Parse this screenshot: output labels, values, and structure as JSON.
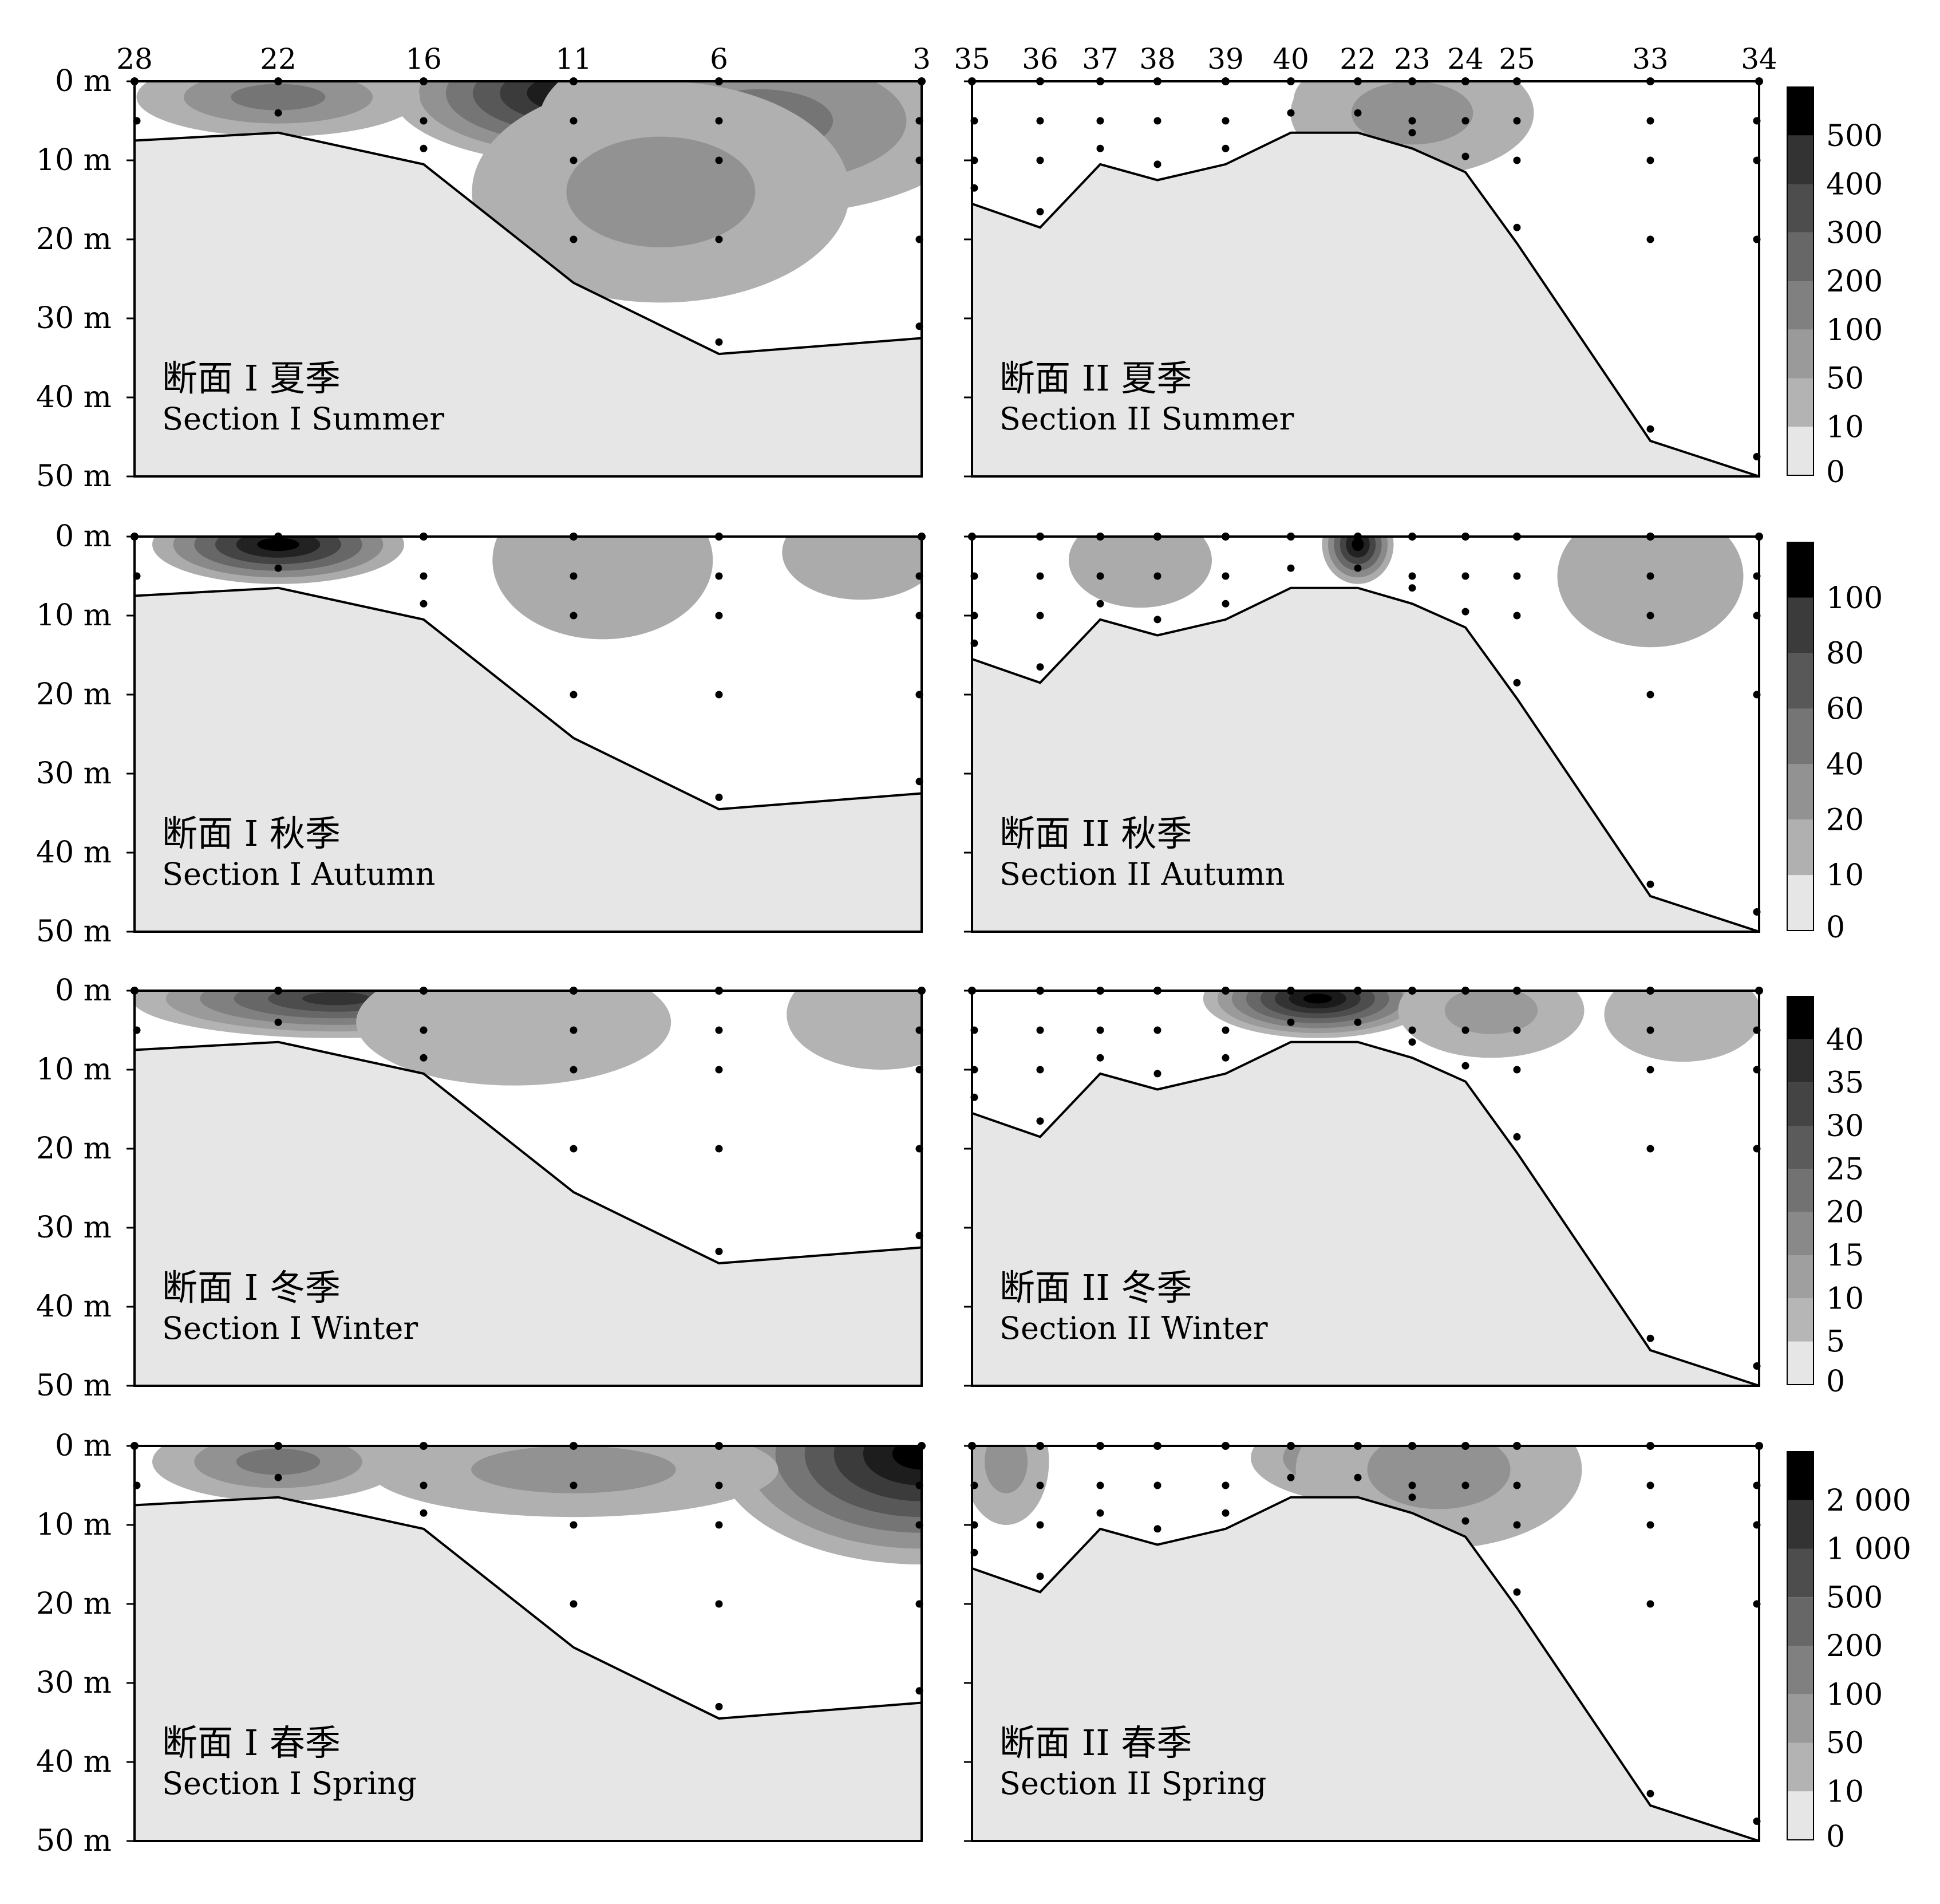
{
  "figure": {
    "depth_ticks": [
      "0 m",
      "10 m",
      "20 m",
      "30 m",
      "40 m",
      "50 m"
    ],
    "depth_values": [
      0,
      10,
      20,
      30,
      40,
      50
    ],
    "seafloor_color": "#e6e6e6",
    "water_zero_color": "#ffffff",
    "outline_color": "#000000",
    "section1_stations": [
      "28",
      "22",
      "16",
      "11",
      "6",
      "3"
    ],
    "section2_stations": [
      "35",
      "36",
      "37",
      "38",
      "39",
      "40",
      "22",
      "23",
      "24",
      "25",
      "33",
      "34"
    ]
  },
  "chart_data": [
    {
      "type": "heatmap",
      "panel": "section1-summer",
      "title_cn": "断面 I  夏季",
      "title_en": "Section I Summer",
      "ylim": [
        0,
        50
      ],
      "show_station_labels": true,
      "x_stations": [
        "28",
        "22",
        "16",
        "11",
        "6",
        "3"
      ],
      "bottom_depth": [
        7.5,
        6.5,
        10.5,
        25.5,
        34.5,
        32.5
      ],
      "colorbar_levels": [
        "0",
        "10",
        "50",
        "100",
        "200",
        "300",
        "400",
        "500"
      ],
      "hotspots": [
        {
          "station_index": 3.05,
          "depth": 1.5,
          "level": 7,
          "spread": 1.2,
          "depth_spread": 9
        },
        {
          "station_index": 1.0,
          "depth": 2.0,
          "level": 3,
          "spread": 0.9,
          "depth_spread": 5
        },
        {
          "station_index": 4.2,
          "depth": 5.0,
          "level": 3,
          "spread": 1.4,
          "depth_spread": 12
        },
        {
          "station_index": 3.6,
          "depth": 14.0,
          "level": 2,
          "spread": 1.2,
          "depth_spread": 14
        }
      ]
    },
    {
      "type": "heatmap",
      "panel": "section2-summer",
      "title_cn": "断面 II  夏季",
      "title_en": "Section II Summer",
      "ylim": [
        0,
        50
      ],
      "show_station_labels": true,
      "x_stations": [
        "35",
        "36",
        "37",
        "38",
        "39",
        "40",
        "22",
        "23",
        "24",
        "25",
        "33",
        "34"
      ],
      "bottom_depth": [
        15.5,
        18.5,
        10.5,
        12.5,
        10.5,
        6.5,
        6.5,
        8.5,
        11.5,
        20.5,
        45.5,
        50.5
      ],
      "colorbar_levels": [
        "0",
        "10",
        "50",
        "100",
        "200",
        "300",
        "400",
        "500"
      ],
      "hotspots": [
        {
          "station_index": 6.0,
          "depth": 2.5,
          "level": 4,
          "spread": 0.9,
          "depth_spread": 5
        },
        {
          "station_index": 7.0,
          "depth": 4.0,
          "level": 2,
          "spread": 1.7,
          "depth_spread": 8
        }
      ]
    },
    {
      "type": "heatmap",
      "panel": "section1-autumn",
      "title_cn": "断面 I  秋季",
      "title_en": "Section I Autumn",
      "ylim": [
        0,
        50
      ],
      "show_station_labels": false,
      "x_stations": [
        "28",
        "22",
        "16",
        "11",
        "6",
        "3"
      ],
      "bottom_depth": [
        7.5,
        6.5,
        10.5,
        25.5,
        34.5,
        32.5
      ],
      "colorbar_levels": [
        "0",
        "10",
        "20",
        "40",
        "60",
        "80",
        "100"
      ],
      "hotspots": [
        {
          "station_index": 1.0,
          "depth": 1.0,
          "level": 6,
          "spread": 0.8,
          "depth_spread": 5
        },
        {
          "station_index": 3.2,
          "depth": 3.0,
          "level": 1,
          "spread": 0.7,
          "depth_spread": 10
        },
        {
          "station_index": 4.7,
          "depth": 2.0,
          "level": 1,
          "spread": 0.5,
          "depth_spread": 6
        }
      ]
    },
    {
      "type": "heatmap",
      "panel": "section2-autumn",
      "title_cn": "断面 II  秋季",
      "title_en": "Section II Autumn",
      "ylim": [
        0,
        50
      ],
      "show_station_labels": false,
      "x_stations": [
        "35",
        "36",
        "37",
        "38",
        "39",
        "40",
        "22",
        "23",
        "24",
        "25",
        "33",
        "34"
      ],
      "bottom_depth": [
        15.5,
        18.5,
        10.5,
        12.5,
        10.5,
        6.5,
        6.5,
        8.5,
        11.5,
        20.5,
        45.5,
        50.5
      ],
      "colorbar_levels": [
        "0",
        "10",
        "20",
        "40",
        "60",
        "80",
        "100"
      ],
      "hotspots": [
        {
          "station_index": 6.0,
          "depth": 1.0,
          "level": 6,
          "spread": 0.5,
          "depth_spread": 5
        },
        {
          "station_index": 10.0,
          "depth": 5.0,
          "level": 1,
          "spread": 1.3,
          "depth_spread": 9
        },
        {
          "station_index": 2.7,
          "depth": 3.0,
          "level": 1,
          "spread": 1.0,
          "depth_spread": 6
        }
      ]
    },
    {
      "type": "heatmap",
      "panel": "section1-winter",
      "title_cn": "断面 I  冬季",
      "title_en": "Section I Winter",
      "ylim": [
        0,
        50
      ],
      "show_station_labels": false,
      "x_stations": [
        "28",
        "22",
        "16",
        "11",
        "6",
        "3"
      ],
      "bottom_depth": [
        7.5,
        6.5,
        10.5,
        25.5,
        34.5,
        32.5
      ],
      "colorbar_levels": [
        "0",
        "5",
        "10",
        "15",
        "20",
        "25",
        "30",
        "35",
        "40"
      ],
      "hotspots": [
        {
          "station_index": 1.4,
          "depth": 1.0,
          "level": 6,
          "spread": 1.3,
          "depth_spread": 5
        },
        {
          "station_index": 2.6,
          "depth": 4.0,
          "level": 1,
          "spread": 1.0,
          "depth_spread": 8
        },
        {
          "station_index": 4.8,
          "depth": 3.0,
          "level": 1,
          "spread": 0.6,
          "depth_spread": 7
        }
      ]
    },
    {
      "type": "heatmap",
      "panel": "section2-winter",
      "title_cn": "断面 II  冬季",
      "title_en": "Section II Winter",
      "ylim": [
        0,
        50
      ],
      "show_station_labels": false,
      "x_stations": [
        "35",
        "36",
        "37",
        "38",
        "39",
        "40",
        "22",
        "23",
        "24",
        "25",
        "33",
        "34"
      ],
      "bottom_depth": [
        15.5,
        18.5,
        10.5,
        12.5,
        10.5,
        6.5,
        6.5,
        8.5,
        11.5,
        20.5,
        45.5,
        50.5
      ],
      "colorbar_levels": [
        "0",
        "5",
        "10",
        "15",
        "20",
        "25",
        "30",
        "35",
        "40"
      ],
      "hotspots": [
        {
          "station_index": 5.4,
          "depth": 1.0,
          "level": 8,
          "spread": 1.6,
          "depth_spread": 5
        },
        {
          "station_index": 8.5,
          "depth": 2.5,
          "level": 2,
          "spread": 1.3,
          "depth_spread": 6
        },
        {
          "station_index": 10.3,
          "depth": 3.0,
          "level": 1,
          "spread": 1.1,
          "depth_spread": 6
        }
      ]
    },
    {
      "type": "heatmap",
      "panel": "section1-spring",
      "title_cn": "断面 I  春季",
      "title_en": "Section I Spring",
      "ylim": [
        0,
        50
      ],
      "show_station_labels": false,
      "x_stations": [
        "28",
        "22",
        "16",
        "11",
        "6",
        "3"
      ],
      "bottom_depth": [
        7.5,
        6.5,
        10.5,
        25.5,
        34.5,
        32.5
      ],
      "colorbar_levels": [
        "0",
        "10",
        "50",
        "100",
        "200",
        "500",
        "1 000",
        "2 000"
      ],
      "hotspots": [
        {
          "station_index": 5.0,
          "depth": 1.0,
          "level": 7,
          "spread": 1.3,
          "depth_spread": 14
        },
        {
          "station_index": 1.0,
          "depth": 2.0,
          "level": 3,
          "spread": 0.8,
          "depth_spread": 5
        },
        {
          "station_index": 3.0,
          "depth": 3.0,
          "level": 2,
          "spread": 1.3,
          "depth_spread": 6
        }
      ]
    },
    {
      "type": "heatmap",
      "panel": "section2-spring",
      "title_cn": "断面 II  春季",
      "title_en": "Section II Spring",
      "ylim": [
        0,
        50
      ],
      "show_station_labels": false,
      "x_stations": [
        "35",
        "36",
        "37",
        "38",
        "39",
        "40",
        "22",
        "23",
        "24",
        "25",
        "33",
        "34"
      ],
      "bottom_depth": [
        15.5,
        18.5,
        10.5,
        12.5,
        10.5,
        6.5,
        6.5,
        8.5,
        11.5,
        20.5,
        45.5,
        50.5
      ],
      "colorbar_levels": [
        "0",
        "10",
        "50",
        "100",
        "200",
        "500",
        "1 000",
        "2 000"
      ],
      "hotspots": [
        {
          "station_index": 6.4,
          "depth": 1.5,
          "level": 4,
          "spread": 1.8,
          "depth_spread": 6
        },
        {
          "station_index": 7.5,
          "depth": 3.0,
          "level": 2,
          "spread": 2.0,
          "depth_spread": 10
        },
        {
          "station_index": 0.5,
          "depth": 2.0,
          "level": 2,
          "spread": 0.6,
          "depth_spread": 8
        }
      ]
    }
  ]
}
